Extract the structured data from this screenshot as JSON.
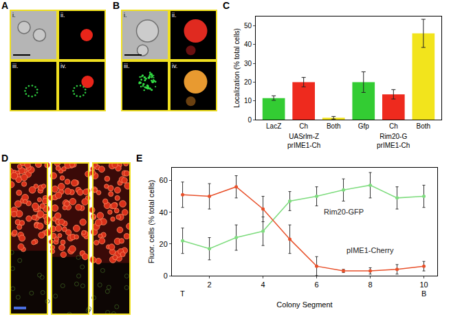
{
  "panels": [
    {
      "panel": "A",
      "subpanels": [
        "i.",
        "ii.",
        "iii.",
        "iv."
      ]
    },
    {
      "panel": "B",
      "subpanels": [
        "i.",
        "ii.",
        "iii.",
        "iv."
      ]
    },
    {
      "panel": "D"
    }
  ],
  "chart_data": [
    {
      "panel": "C",
      "type": "bar",
      "categories": [
        "LacZ",
        "Ch",
        "Both",
        "Gfp",
        "Ch",
        "Both"
      ],
      "groups": [
        "UASrlm-Z prIME1-Ch",
        "Rim20-G prIME1-Ch"
      ],
      "values": [
        11.5,
        20,
        1,
        20,
        13.5,
        46
      ],
      "errors": [
        1.2,
        2.5,
        0.7,
        5.5,
        2.5,
        7.5
      ],
      "colors": [
        "#33cc33",
        "#ee2a1e",
        "#f2e41c",
        "#33cc33",
        "#ee2a1e",
        "#f2e41c"
      ],
      "y_label": "Localization (% total cells)",
      "ylim": [
        0,
        55
      ],
      "yticks": [
        0,
        10,
        20,
        30,
        40,
        50
      ],
      "grid": false
    },
    {
      "panel": "E",
      "type": "line",
      "x": [
        1,
        2,
        3,
        4,
        5,
        6,
        7,
        8,
        9,
        10
      ],
      "x_label": "Colony Segment",
      "y_label": "Fluor. cells (% total cells)",
      "xlim": [
        0.6,
        10.5
      ],
      "xticks": [
        2,
        4,
        6,
        8,
        10
      ],
      "ylim": [
        0,
        68
      ],
      "yticks": [
        0,
        20,
        40,
        60
      ],
      "annotations": [
        {
          "x": 1,
          "text": "T"
        },
        {
          "x": 10,
          "text": "B"
        }
      ],
      "marker": "circle",
      "grid": false,
      "series": [
        {
          "name": "Rim20-GFP",
          "color": "#7edc7e",
          "values": [
            22,
            17,
            24,
            28,
            47,
            50,
            54,
            57,
            49,
            50
          ],
          "errors": [
            8,
            7,
            8,
            9,
            6,
            6,
            7,
            8,
            7,
            7
          ]
        },
        {
          "name": "pIME1-Cherry",
          "color": "#e8502a",
          "values": [
            51,
            50,
            56,
            42,
            23,
            6,
            3,
            3,
            4,
            6
          ],
          "errors": [
            8,
            8,
            7,
            8,
            9,
            6,
            1,
            2,
            3,
            3
          ]
        }
      ]
    }
  ]
}
